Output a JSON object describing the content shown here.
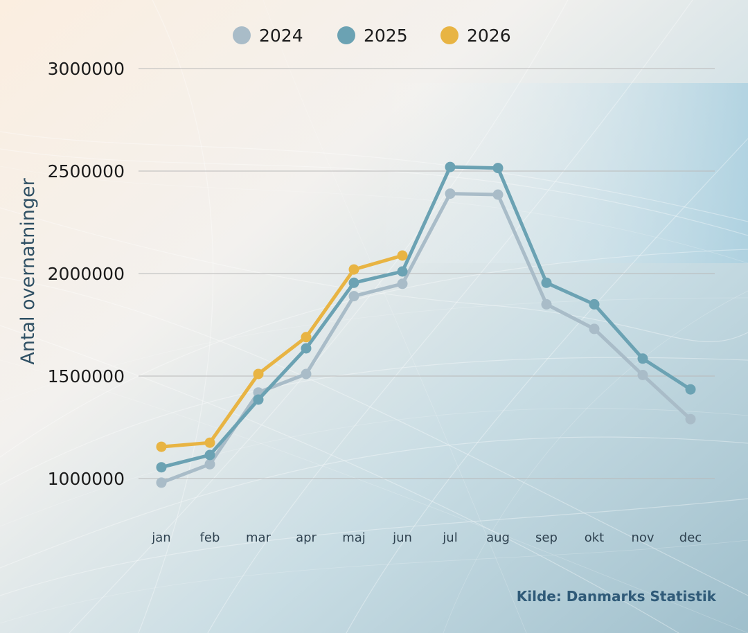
{
  "chart_data": {
    "type": "line",
    "categories": [
      "jan",
      "feb",
      "mar",
      "apr",
      "maj",
      "jun",
      "jul",
      "aug",
      "sep",
      "okt",
      "nov",
      "dec"
    ],
    "series": [
      {
        "name": "2024",
        "color": "#a9bcc8",
        "values": [
          980000,
          1070000,
          1420000,
          1510000,
          1890000,
          1950000,
          2390000,
          2385000,
          1850000,
          1730000,
          1505000,
          1290000
        ]
      },
      {
        "name": "2025",
        "color": "#6ba2b3",
        "values": [
          1055000,
          1115000,
          1385000,
          1635000,
          1955000,
          2010000,
          2520000,
          2515000,
          1955000,
          1850000,
          1585000,
          1435000
        ]
      },
      {
        "name": "2026",
        "color": "#e8b443",
        "values": [
          1155000,
          1175000,
          1510000,
          1690000,
          2020000,
          2088000,
          null,
          null,
          null,
          null,
          null,
          null
        ]
      }
    ],
    "yticks": [
      1000000,
      1500000,
      2000000,
      2500000,
      3000000
    ],
    "ylim": [
      1000000,
      3000000
    ],
    "xlabel": "",
    "ylabel": "Antal overnatninger",
    "grid": true,
    "legend_position": "top-center",
    "source": "Kilde: Danmarks Statistik"
  }
}
